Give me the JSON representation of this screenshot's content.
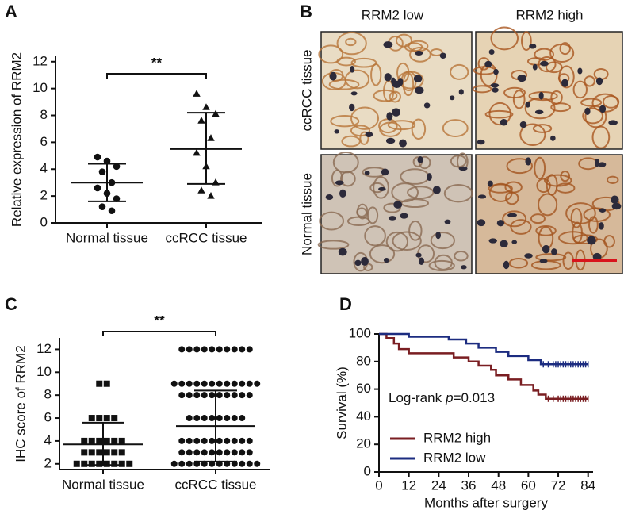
{
  "chart_data": [
    {
      "label": "A",
      "type": "dot",
      "ylabel": "Relative expression of RRM2",
      "significance": "**",
      "categories": [
        "Normal tissue",
        "ccRCC tissue"
      ],
      "groups": [
        {
          "marker": "circle",
          "values": [
            4.9,
            4.6,
            4.2,
            3.8,
            3.0,
            2.6,
            2.2,
            1.8,
            1.2,
            0.9
          ],
          "mean": 3.0,
          "sd_low": 1.6,
          "sd_high": 4.4
        },
        {
          "marker": "triangle",
          "values": [
            9.6,
            8.6,
            8.1,
            7.6,
            6.3,
            5.2,
            4.2,
            3.0,
            2.4,
            2.0
          ],
          "mean": 5.5,
          "sd_low": 2.9,
          "sd_high": 8.2
        }
      ],
      "ylim": [
        0,
        12.4
      ],
      "yticks": [
        0,
        2,
        4,
        6,
        8,
        10,
        12
      ]
    },
    {
      "label": "C",
      "type": "dot",
      "ylabel": "IHC score of RRM2",
      "significance": "**",
      "categories": [
        "Normal tissue",
        "ccRCC tissue"
      ],
      "groups": [
        {
          "marker": "square",
          "values": [
            9,
            9,
            6,
            6,
            6,
            6,
            4,
            4,
            4,
            4,
            4,
            4,
            3,
            3,
            3,
            3,
            3,
            3,
            2,
            2,
            2,
            2,
            2,
            2,
            2,
            2
          ],
          "mean": 3.7,
          "sd_low": 1.9,
          "sd_high": 5.6
        },
        {
          "marker": "circle",
          "values": [
            12,
            12,
            12,
            12,
            12,
            12,
            12,
            12,
            12,
            12,
            9,
            9,
            9,
            9,
            9,
            9,
            9,
            9,
            9,
            9,
            9,
            9,
            8,
            8,
            8,
            8,
            8,
            8,
            8,
            8,
            8,
            8,
            6,
            6,
            6,
            6,
            6,
            6,
            6,
            6,
            4,
            4,
            4,
            4,
            4,
            4,
            4,
            4,
            4,
            4,
            3,
            3,
            3,
            3,
            3,
            3,
            3,
            3,
            3,
            3,
            2,
            2,
            2,
            2,
            2,
            2,
            2,
            2,
            2,
            2,
            2,
            2
          ],
          "mean": 5.3,
          "sd_low": 2.2,
          "sd_high": 8.4
        }
      ],
      "ylim": [
        1.5,
        13
      ],
      "yticks": [
        2,
        4,
        6,
        8,
        10,
        12
      ]
    },
    {
      "label": "D",
      "type": "survival",
      "xlabel": "Months after surgery",
      "ylabel": "Survival (%)",
      "annotation_parts": [
        "Log-rank",
        "p",
        "=0.013"
      ],
      "legend": "bottom-left",
      "xlim": [
        0,
        86
      ],
      "xticks": [
        0,
        12,
        24,
        36,
        48,
        60,
        72,
        84
      ],
      "ylim": [
        0,
        100
      ],
      "yticks": [
        0,
        20,
        40,
        60,
        80,
        100
      ],
      "series": [
        {
          "name": "RRM2 high",
          "color": "#7a1e22",
          "x": [
            0,
            3,
            3,
            6,
            6,
            8,
            8,
            12,
            12,
            30,
            30,
            36,
            36,
            40,
            40,
            45,
            45,
            47,
            47,
            52,
            52,
            57,
            57,
            62,
            62,
            64,
            64,
            67,
            67,
            84
          ],
          "values": [
            100,
            100,
            97,
            97,
            93,
            93,
            89,
            89,
            86,
            86,
            83,
            83,
            80,
            80,
            77,
            77,
            74,
            74,
            70,
            70,
            67,
            67,
            63,
            63,
            59,
            59,
            56,
            56,
            53,
            53
          ],
          "censored_x": [
            68,
            70,
            72,
            73,
            74,
            75,
            76,
            77,
            78,
            79,
            80,
            81,
            82,
            83,
            84
          ],
          "censored_values": [
            53,
            53,
            53,
            53,
            53,
            53,
            53,
            53,
            53,
            53,
            53,
            53,
            53,
            53,
            53
          ]
        },
        {
          "name": "RRM2 low",
          "color": "#1c2c80",
          "x": [
            0,
            12,
            12,
            28,
            28,
            35,
            35,
            40,
            40,
            47,
            47,
            52,
            52,
            60,
            60,
            65,
            65,
            84
          ],
          "values": [
            100,
            100,
            98,
            98,
            96,
            96,
            93,
            93,
            90,
            90,
            87,
            87,
            84,
            84,
            81,
            81,
            78,
            78
          ],
          "censored_x": [
            66,
            68,
            70,
            71,
            72,
            73,
            74,
            75,
            76,
            77,
            78,
            79,
            80,
            81,
            82,
            83,
            84
          ],
          "censored_values": [
            78,
            78,
            78,
            78,
            78,
            78,
            78,
            78,
            78,
            78,
            78,
            78,
            78,
            78,
            78,
            78,
            78
          ]
        }
      ]
    }
  ],
  "figure_b": {
    "label": "B",
    "col_headers": [
      "RRM2 low",
      "RRM2 high"
    ],
    "row_labels": [
      "ccRCC tissue",
      "Normal tissue"
    ]
  }
}
